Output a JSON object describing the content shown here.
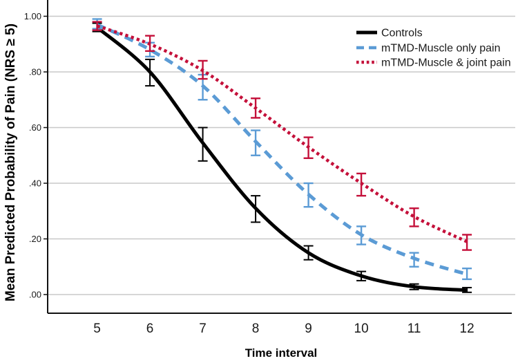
{
  "figure": {
    "background": "#ffffff"
  },
  "colors": {
    "gridline": "#c8c8c8",
    "axis": "#111111",
    "text": "#1a1a1a",
    "controls": "#000000",
    "muscle_only": "#5B9BD5",
    "muscle_joint": "#C4103A"
  },
  "chart_data": {
    "type": "line",
    "title": "",
    "xlabel": "Time interval",
    "ylabel": "Mean Predicted Probability of Pain (NRS ≥ 5)",
    "x": [
      5,
      6,
      7,
      8,
      9,
      10,
      11,
      12
    ],
    "xticks": {
      "values": [
        5,
        6,
        7,
        8,
        9,
        10,
        11,
        12
      ],
      "labels": [
        "5",
        "6",
        "7",
        "8",
        "9",
        "10",
        "11",
        "12"
      ]
    },
    "yticks": {
      "values": [
        1.0,
        0.8,
        0.6,
        0.4,
        0.2,
        0.0
      ],
      "labels": [
        "1.00",
        ".80",
        ".60",
        ".40",
        ".20",
        ".00"
      ]
    },
    "xlim": [
      4.1,
      12.85
    ],
    "ylim": [
      -0.07,
      1.06
    ],
    "grid": "horizontal",
    "legend_position": "upper-right-inside",
    "error_bars": true,
    "series": [
      {
        "name": "Controls",
        "color": "#000000",
        "style": "solid",
        "values": [
          0.96,
          0.8,
          0.545,
          0.31,
          0.15,
          0.067,
          0.028,
          0.016
        ],
        "err_low": [
          0.945,
          0.75,
          0.48,
          0.26,
          0.125,
          0.05,
          0.018,
          0.008
        ],
        "err_high": [
          0.975,
          0.845,
          0.6,
          0.355,
          0.175,
          0.083,
          0.038,
          0.025
        ]
      },
      {
        "name": "mTMD-Muscle only pain",
        "color": "#5B9BD5",
        "style": "dashed",
        "values": [
          0.97,
          0.88,
          0.75,
          0.55,
          0.36,
          0.215,
          0.13,
          0.073
        ],
        "err_low": [
          0.955,
          0.855,
          0.7,
          0.5,
          0.315,
          0.18,
          0.1,
          0.055
        ],
        "err_high": [
          0.99,
          0.905,
          0.79,
          0.59,
          0.4,
          0.245,
          0.15,
          0.094
        ]
      },
      {
        "name": "mTMD-Muscle & joint pain",
        "color": "#C4103A",
        "style": "dotted",
        "values": [
          0.965,
          0.9,
          0.805,
          0.67,
          0.53,
          0.4,
          0.28,
          0.19
        ],
        "err_low": [
          0.95,
          0.875,
          0.775,
          0.635,
          0.49,
          0.355,
          0.245,
          0.16
        ],
        "err_high": [
          0.98,
          0.93,
          0.84,
          0.705,
          0.565,
          0.435,
          0.31,
          0.215
        ]
      }
    ]
  }
}
